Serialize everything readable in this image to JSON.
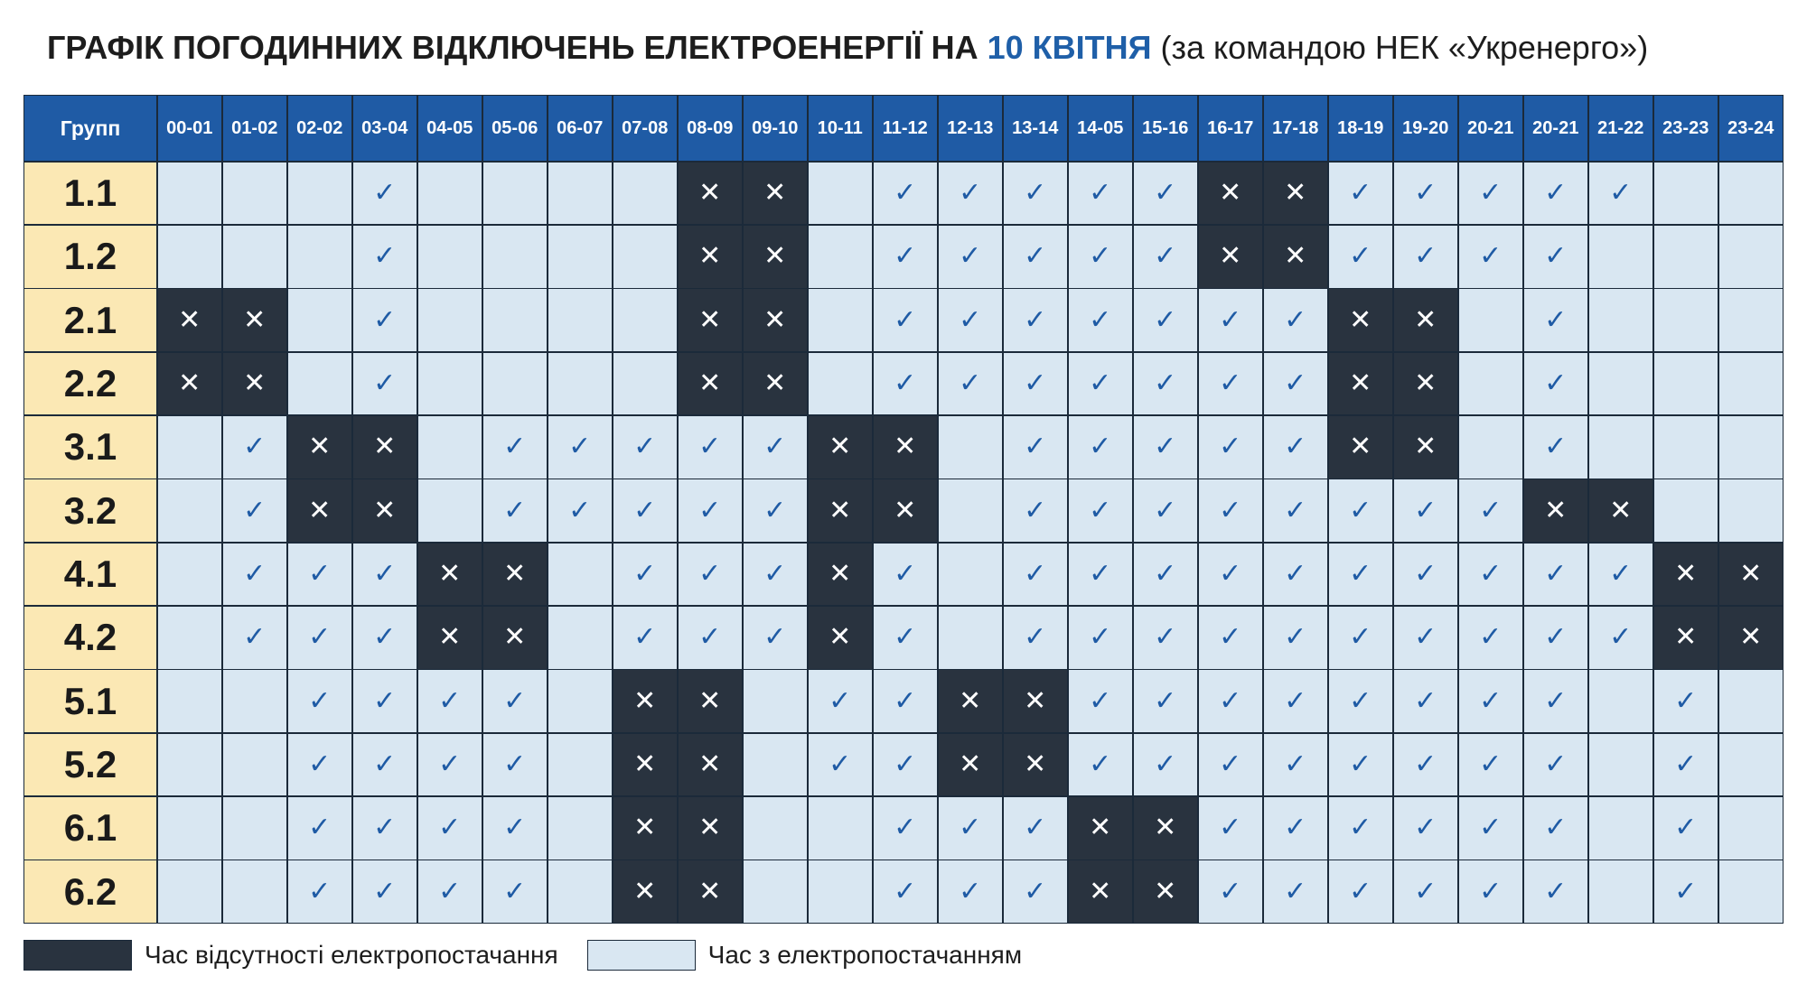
{
  "title": {
    "main": "ГРАФІК ПОГОДИННИХ ВІДКЛЮЧЕНЬ ЕЛЕКТРОЕНЕРГІЇ НА ",
    "date": "10 КВІТНЯ",
    "sub": " (за командою НЕК «Укренерго»)"
  },
  "table": {
    "corner_label": "Групп",
    "hours": [
      "00-01",
      "01-02",
      "02-02",
      "03-04",
      "04-05",
      "05-06",
      "06-07",
      "07-08",
      "08-09",
      "09-10",
      "10-11",
      "11-12",
      "12-13",
      "13-14",
      "14-05",
      "15-16",
      "16-17",
      "17-18",
      "18-19",
      "19-20",
      "20-21",
      "20-21",
      "21-22",
      "23-23",
      "23-24"
    ],
    "symbols": {
      "on": "✓",
      "off": "✕"
    },
    "rows": [
      {
        "group": "1.1",
        "cells": "...v....xx.vvvvvxxvvvvv.."
      },
      {
        "group": "1.2",
        "cells": "...v....xx.vvvvvxxvvvv..."
      },
      {
        "group": "2.1",
        "cells": "xx.v....xx.vvvvvvvxx.v..."
      },
      {
        "group": "2.2",
        "cells": "xx.v....xx.vvvvvvvxx.v..."
      },
      {
        "group": "3.1",
        "cells": ".vxx.vvvvvxx.vvvvvxx.v..."
      },
      {
        "group": "3.2",
        "cells": ".vxx.vvvvvxx.vvvvvvvvxx.."
      },
      {
        "group": "4.1",
        "cells": ".vvvxx.vvvxv.vvvvvvvvvvxx"
      },
      {
        "group": "4.2",
        "cells": ".vvvxx.vvvxv.vvvvvvvvvvxx"
      },
      {
        "group": "5.1",
        "cells": "..vvvv.xx.vvxxvvvvvvvv.v."
      },
      {
        "group": "5.2",
        "cells": "..vvvv.xx.vvxxvvvvvvvv.v."
      },
      {
        "group": "6.1",
        "cells": "..vvvv.xx..vvvxxvvvvvv.v."
      },
      {
        "group": "6.2",
        "cells": "..vvvv.xx..vvvxxvvvvvv.v."
      }
    ]
  },
  "legend": {
    "off_label": "Час відсутності електропостачання",
    "on_label": "Час з електропостачанням"
  },
  "colors": {
    "header_bg": "#1f5ba5",
    "group_bg": "#fbe8b4",
    "on_bg": "#d9e7f2",
    "off_bg": "#29333f",
    "accent": "#1f5fa8"
  }
}
